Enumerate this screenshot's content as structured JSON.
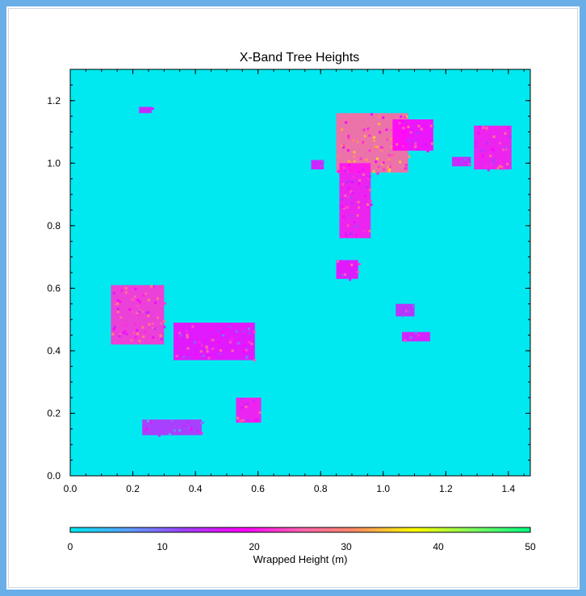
{
  "chart_data": {
    "type": "heatmap",
    "title": "X-Band Tree Heights",
    "xlabel": "",
    "ylabel": "",
    "xlim": [
      0,
      1.47
    ],
    "ylim": [
      0,
      1.3
    ],
    "x_ticks": [
      "0.0",
      "0.2",
      "0.4",
      "0.6",
      "0.8",
      "1.0",
      "1.2",
      "1.4"
    ],
    "x_tick_values": [
      0,
      0.2,
      0.4,
      0.6,
      0.8,
      1.0,
      1.2,
      1.4
    ],
    "y_ticks": [
      "0.0",
      "0.2",
      "0.4",
      "0.6",
      "0.8",
      "1.0",
      "1.2"
    ],
    "y_tick_values": [
      0,
      0.2,
      0.4,
      0.6,
      0.8,
      1.0,
      1.2
    ],
    "background_value_m": 0,
    "background_color": "#00e8f0",
    "colorbar": {
      "label": "Wrapped Height (m)",
      "ticks": [
        "0",
        "10",
        "20",
        "30",
        "40",
        "50"
      ],
      "tick_values": [
        0,
        10,
        20,
        30,
        40,
        50
      ],
      "range": [
        0,
        50
      ],
      "colors": [
        "#00e8f0",
        "#5aa0ff",
        "#a040ff",
        "#ff00ff",
        "#ff60b0",
        "#ff9060",
        "#ffff00",
        "#80ff60",
        "#00ff80"
      ]
    },
    "regions": [
      {
        "name": "forest-stand-left-west",
        "x": [
          0.13,
          0.3
        ],
        "y": [
          0.42,
          0.61
        ],
        "height_m": 22
      },
      {
        "name": "forest-stand-left-east",
        "x": [
          0.33,
          0.59
        ],
        "y": [
          0.37,
          0.49
        ],
        "height_m": 18
      },
      {
        "name": "forest-stand-top-center",
        "x": [
          0.85,
          1.08
        ],
        "y": [
          0.97,
          1.16
        ],
        "height_m": 26
      },
      {
        "name": "forest-strip-top-center",
        "x": [
          0.86,
          0.96
        ],
        "y": [
          0.76,
          1.0
        ],
        "height_m": 20
      },
      {
        "name": "forest-stand-top-tail",
        "x": [
          1.03,
          1.16
        ],
        "y": [
          1.04,
          1.14
        ],
        "height_m": 19
      },
      {
        "name": "forest-stand-top-right",
        "x": [
          1.29,
          1.41
        ],
        "y": [
          0.98,
          1.12
        ],
        "height_m": 20
      },
      {
        "name": "patch-bottom-center",
        "x": [
          0.53,
          0.61
        ],
        "y": [
          0.17,
          0.25
        ],
        "height_m": 20
      },
      {
        "name": "patch-mid-right-a",
        "x": [
          0.85,
          0.92
        ],
        "y": [
          0.63,
          0.69
        ],
        "height_m": 18
      },
      {
        "name": "patch-mid-right-b",
        "x": [
          1.06,
          1.15
        ],
        "y": [
          0.43,
          0.46
        ],
        "height_m": 17
      },
      {
        "name": "patch-mid-right-c",
        "x": [
          1.04,
          1.1
        ],
        "y": [
          0.51,
          0.55
        ],
        "height_m": 15
      },
      {
        "name": "patch-bottom-left",
        "x": [
          0.23,
          0.42
        ],
        "y": [
          0.13,
          0.18
        ],
        "height_m": 14
      },
      {
        "name": "patch-small-top-left",
        "x": [
          0.22,
          0.26
        ],
        "y": [
          1.16,
          1.18
        ],
        "height_m": 16
      },
      {
        "name": "patch-small-mid",
        "x": [
          0.77,
          0.81
        ],
        "y": [
          0.98,
          1.01
        ],
        "height_m": 17
      },
      {
        "name": "patch-small-right",
        "x": [
          1.22,
          1.28
        ],
        "y": [
          0.99,
          1.02
        ],
        "height_m": 16
      }
    ]
  }
}
